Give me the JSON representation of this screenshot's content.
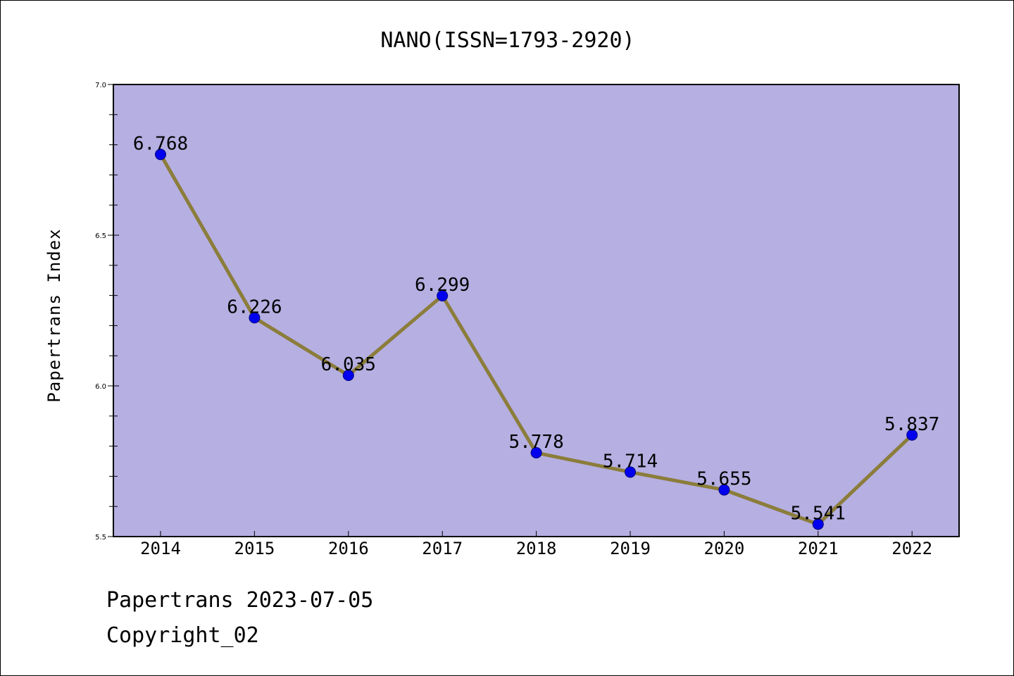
{
  "chart_data": {
    "type": "line",
    "title": "NANO(ISSN=1793-2920)",
    "xlabel": "",
    "ylabel": "Papertrans Index",
    "categories": [
      "2014",
      "2015",
      "2016",
      "2017",
      "2018",
      "2019",
      "2020",
      "2021",
      "2022"
    ],
    "values": [
      6.768,
      6.226,
      6.035,
      6.299,
      5.778,
      5.714,
      5.655,
      5.541,
      5.837
    ],
    "value_labels": [
      "6.768",
      "6.226",
      "6.035",
      "6.299",
      "5.778",
      "5.714",
      "5.655",
      "5.541",
      "5.837"
    ],
    "ylim": [
      5.5,
      7.0
    ],
    "yticks": [
      "5.5",
      "6.0",
      "6.5",
      "7.0"
    ],
    "grid": false,
    "colors": {
      "plot_background": "#b5afe2",
      "line": "#8b7d3a",
      "marker": "#0000ee",
      "marker_edge": "#000080"
    }
  },
  "footer": {
    "line1": "Papertrans 2023-07-05",
    "line2": "Copyright_02"
  }
}
